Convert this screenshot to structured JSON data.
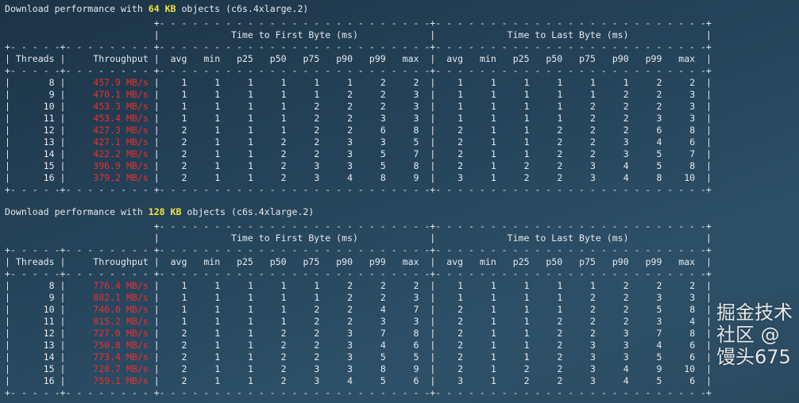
{
  "tables": [
    {
      "title_prefix": "Download performance with",
      "size": "64 KB",
      "title_suffix": "objects (c6s.4xlarge.2)",
      "group_headers": [
        "Time to First Byte (ms)",
        "Time to Last Byte (ms)"
      ],
      "columns": [
        "Threads",
        "Throughput",
        "avg",
        "min",
        "p25",
        "p50",
        "p75",
        "p90",
        "p99",
        "max"
      ],
      "rows": [
        {
          "threads": "8",
          "throughput": "457.9 MB/s",
          "ttfb": [
            "1",
            "1",
            "1",
            "1",
            "1",
            "1",
            "2",
            "2"
          ],
          "ttlb": [
            "1",
            "1",
            "1",
            "1",
            "1",
            "1",
            "2",
            "2"
          ]
        },
        {
          "threads": "9",
          "throughput": "470.1 MB/s",
          "ttfb": [
            "1",
            "1",
            "1",
            "1",
            "1",
            "2",
            "2",
            "3"
          ],
          "ttlb": [
            "1",
            "1",
            "1",
            "1",
            "1",
            "2",
            "2",
            "3"
          ]
        },
        {
          "threads": "10",
          "throughput": "453.3 MB/s",
          "ttfb": [
            "1",
            "1",
            "1",
            "1",
            "2",
            "2",
            "2",
            "3"
          ],
          "ttlb": [
            "1",
            "1",
            "1",
            "1",
            "2",
            "2",
            "2",
            "3"
          ]
        },
        {
          "threads": "11",
          "throughput": "453.4 MB/s",
          "ttfb": [
            "1",
            "1",
            "1",
            "1",
            "2",
            "2",
            "3",
            "3"
          ],
          "ttlb": [
            "1",
            "1",
            "1",
            "1",
            "2",
            "2",
            "3",
            "3"
          ]
        },
        {
          "threads": "12",
          "throughput": "427.3 MB/s",
          "ttfb": [
            "2",
            "1",
            "1",
            "1",
            "2",
            "2",
            "6",
            "8"
          ],
          "ttlb": [
            "2",
            "1",
            "1",
            "2",
            "2",
            "2",
            "6",
            "8"
          ]
        },
        {
          "threads": "13",
          "throughput": "427.1 MB/s",
          "ttfb": [
            "2",
            "1",
            "1",
            "2",
            "2",
            "3",
            "3",
            "5"
          ],
          "ttlb": [
            "2",
            "1",
            "1",
            "2",
            "2",
            "3",
            "4",
            "6"
          ]
        },
        {
          "threads": "14",
          "throughput": "422.2 MB/s",
          "ttfb": [
            "2",
            "1",
            "1",
            "2",
            "2",
            "3",
            "5",
            "7"
          ],
          "ttlb": [
            "2",
            "1",
            "1",
            "2",
            "2",
            "3",
            "5",
            "7"
          ]
        },
        {
          "threads": "15",
          "throughput": "396.9 MB/s",
          "ttfb": [
            "2",
            "1",
            "1",
            "2",
            "3",
            "3",
            "5",
            "8"
          ],
          "ttlb": [
            "2",
            "1",
            "2",
            "2",
            "3",
            "4",
            "5",
            "8"
          ]
        },
        {
          "threads": "16",
          "throughput": "379.2 MB/s",
          "ttfb": [
            "2",
            "1",
            "1",
            "2",
            "3",
            "4",
            "8",
            "9"
          ],
          "ttlb": [
            "3",
            "1",
            "2",
            "2",
            "3",
            "4",
            "8",
            "10"
          ]
        }
      ]
    },
    {
      "title_prefix": "Download performance with",
      "size": "128 KB",
      "title_suffix": "objects (c6s.4xlarge.2)",
      "group_headers": [
        "Time to First Byte (ms)",
        "Time to Last Byte (ms)"
      ],
      "columns": [
        "Threads",
        "Throughput",
        "avg",
        "min",
        "p25",
        "p50",
        "p75",
        "p90",
        "p99",
        "max"
      ],
      "rows": [
        {
          "threads": "8",
          "throughput": "776.4 MB/s",
          "ttfb": [
            "1",
            "1",
            "1",
            "1",
            "1",
            "2",
            "2",
            "2"
          ],
          "ttlb": [
            "1",
            "1",
            "1",
            "1",
            "1",
            "2",
            "2",
            "2"
          ]
        },
        {
          "threads": "9",
          "throughput": "802.1 MB/s",
          "ttfb": [
            "1",
            "1",
            "1",
            "1",
            "1",
            "2",
            "2",
            "3"
          ],
          "ttlb": [
            "1",
            "1",
            "1",
            "1",
            "2",
            "2",
            "3",
            "3"
          ]
        },
        {
          "threads": "10",
          "throughput": "746.0 MB/s",
          "ttfb": [
            "1",
            "1",
            "1",
            "1",
            "2",
            "2",
            "4",
            "7"
          ],
          "ttlb": [
            "2",
            "1",
            "1",
            "1",
            "2",
            "2",
            "5",
            "8"
          ]
        },
        {
          "threads": "11",
          "throughput": "815.2 MB/s",
          "ttfb": [
            "1",
            "1",
            "1",
            "1",
            "2",
            "2",
            "3",
            "3"
          ],
          "ttlb": [
            "2",
            "1",
            "1",
            "2",
            "2",
            "2",
            "3",
            "4"
          ]
        },
        {
          "threads": "12",
          "throughput": "727.0 MB/s",
          "ttfb": [
            "2",
            "1",
            "1",
            "2",
            "2",
            "3",
            "7",
            "8"
          ],
          "ttlb": [
            "2",
            "1",
            "1",
            "2",
            "2",
            "3",
            "7",
            "8"
          ]
        },
        {
          "threads": "13",
          "throughput": "750.8 MB/s",
          "ttfb": [
            "2",
            "1",
            "1",
            "2",
            "2",
            "3",
            "4",
            "6"
          ],
          "ttlb": [
            "2",
            "1",
            "1",
            "2",
            "3",
            "3",
            "4",
            "6"
          ]
        },
        {
          "threads": "14",
          "throughput": "773.4 MB/s",
          "ttfb": [
            "2",
            "1",
            "1",
            "2",
            "2",
            "3",
            "5",
            "5"
          ],
          "ttlb": [
            "2",
            "1",
            "1",
            "2",
            "3",
            "3",
            "5",
            "6"
          ]
        },
        {
          "threads": "15",
          "throughput": "728.7 MB/s",
          "ttfb": [
            "2",
            "1",
            "1",
            "2",
            "3",
            "3",
            "8",
            "9"
          ],
          "ttlb": [
            "2",
            "1",
            "2",
            "2",
            "3",
            "4",
            "9",
            "10"
          ]
        },
        {
          "threads": "16",
          "throughput": "759.1 MB/s",
          "ttfb": [
            "2",
            "1",
            "1",
            "2",
            "3",
            "4",
            "5",
            "6"
          ],
          "ttlb": [
            "3",
            "1",
            "2",
            "2",
            "3",
            "4",
            "5",
            "6"
          ]
        }
      ]
    }
  ],
  "watermark": "掘金技术社区 @ 馒头675",
  "colors": {
    "throughput": "#e8302e",
    "highlight": "#f2e23a",
    "text": "#e6e9ec"
  }
}
